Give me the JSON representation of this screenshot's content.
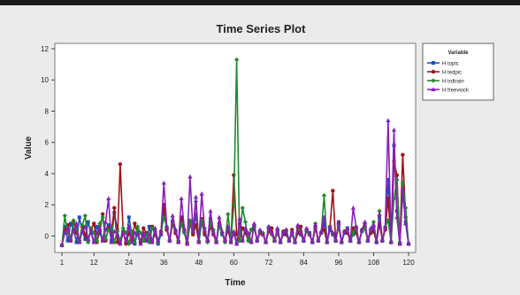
{
  "colors": {
    "panel_bg": "#ebebeb",
    "plot_bg": "#ffffff",
    "top_bar": "#1a1a1a"
  },
  "chart_data": {
    "type": "line",
    "title": "Time Series Plot",
    "xlabel": "Time",
    "ylabel": "Value",
    "xlim": [
      1,
      120
    ],
    "ylim": [
      -0.6,
      12
    ],
    "xticks": [
      1,
      12,
      24,
      36,
      48,
      60,
      72,
      84,
      96,
      108,
      120
    ],
    "yticks": [
      0,
      2,
      4,
      6,
      8,
      10,
      12
    ],
    "grid": false,
    "legend_placement": "right",
    "legend_title": "Variable",
    "series": [
      {
        "name": "H topic",
        "color": "#1f4fb8",
        "marker": "square",
        "values": [
          -0.6,
          0.6,
          -0.3,
          0.8,
          0.4,
          -0.4,
          1.2,
          0.3,
          -0.2,
          0.9,
          0.2,
          -0.4,
          0.6,
          0.2,
          -0.3,
          0.4,
          0.7,
          -0.3,
          1.5,
          0.4,
          -0.5,
          0.2,
          -0.4,
          1.2,
          0.1,
          -0.5,
          0.3,
          -0.4,
          0.0,
          -0.3,
          0.6,
          -0.4,
          0.2,
          -0.5,
          0.1,
          1.6,
          0.4,
          -0.3,
          0.8,
          0.2,
          -0.4,
          1.0,
          0.3,
          -0.5,
          0.8,
          0.2,
          1.4,
          -0.4,
          0.9,
          0.1,
          -0.3,
          1.1,
          0.2,
          -0.4,
          0.7,
          0.1,
          -0.3,
          0.5,
          -0.4,
          0.2,
          -0.5,
          0.8,
          -0.3,
          0.4,
          0.1,
          -0.4,
          0.6,
          -0.3,
          0.3,
          0.1,
          -0.4,
          0.5,
          0.2,
          -0.3,
          0.4,
          -0.4,
          0.1,
          0.3,
          -0.3,
          0.2,
          -0.4,
          0.6,
          0.1,
          -0.3,
          0.4,
          0.2,
          -0.4,
          0.6,
          -0.3,
          0.2,
          0.8,
          -0.4,
          0.4,
          0.1,
          -0.3,
          0.9,
          -0.4,
          0.2,
          0.5,
          -0.3,
          0.1,
          0.4,
          -0.4,
          0.3,
          0.8,
          -0.3,
          0.2,
          0.6,
          -0.4,
          1.2,
          -0.3,
          0.5,
          3.6,
          -0.4,
          5.8,
          1.6,
          -0.5,
          2.8,
          0.9,
          -0.5
        ]
      },
      {
        "name": "H tedpic",
        "color": "#a01414",
        "marker": "circle",
        "values": [
          -0.6,
          0.4,
          0.7,
          -0.3,
          0.9,
          0.2,
          -0.4,
          0.6,
          0.1,
          -0.3,
          0.4,
          0.8,
          -0.4,
          0.3,
          1.4,
          -0.3,
          0.5,
          0.2,
          1.8,
          -0.4,
          4.6,
          0.3,
          -0.5,
          0.2,
          -0.3,
          0.8,
          0.1,
          -0.4,
          0.5,
          0.2,
          -0.3,
          0.6,
          0.1,
          -0.4,
          0.3,
          2.0,
          0.4,
          -0.3,
          0.9,
          0.2,
          -0.4,
          1.2,
          0.3,
          -0.5,
          0.9,
          0.1,
          0.7,
          -0.4,
          1.1,
          0.2,
          -0.3,
          0.6,
          0.1,
          -0.4,
          0.8,
          0.2,
          -0.3,
          0.4,
          -0.4,
          3.9,
          0.1,
          -0.3,
          0.5,
          0.2,
          -0.3,
          0.4,
          0.7,
          -0.3,
          0.2,
          0.1,
          -0.4,
          0.3,
          0.5,
          -0.3,
          0.2,
          -0.4,
          0.3,
          0.1,
          -0.3,
          0.4,
          -0.4,
          0.2,
          0.6,
          -0.3,
          0.3,
          0.1,
          -0.4,
          0.5,
          -0.3,
          0.2,
          0.4,
          -0.4,
          0.6,
          2.9,
          -0.3,
          0.8,
          -0.4,
          0.3,
          0.2,
          -0.3,
          0.5,
          0.2,
          -0.4,
          0.4,
          0.6,
          -0.3,
          0.2,
          0.3,
          -0.4,
          0.8,
          -0.3,
          0.4,
          2.4,
          -0.4,
          4.8,
          3.9,
          -0.5,
          5.2,
          1.2,
          -0.5
        ]
      },
      {
        "name": "H trdtrain",
        "color": "#1f8a2e",
        "marker": "diamond",
        "values": [
          -0.6,
          1.3,
          0.2,
          -0.2,
          1.0,
          0.5,
          -0.3,
          0.7,
          1.3,
          -0.4,
          0.5,
          0.2,
          -0.3,
          0.8,
          1.2,
          -0.2,
          0.4,
          0.6,
          -0.4,
          0.3,
          -0.3,
          0.5,
          0.2,
          -0.5,
          0.3,
          -0.4,
          0.6,
          0.2,
          -0.3,
          0.1,
          -0.4,
          0.5,
          0.3,
          -0.4,
          0.2,
          1.2,
          0.6,
          -0.3,
          1.0,
          0.4,
          -0.3,
          0.8,
          0.2,
          -0.4,
          1.0,
          0.3,
          2.2,
          -0.3,
          1.0,
          0.5,
          -0.4,
          0.9,
          0.4,
          -0.3,
          0.6,
          0.2,
          -0.4,
          1.4,
          -0.3,
          2.0,
          11.3,
          -0.3,
          1.8,
          0.9,
          -0.3,
          0.4,
          0.6,
          -0.3,
          0.3,
          0.2,
          -0.4,
          0.6,
          0.1,
          -0.3,
          0.3,
          -0.4,
          0.2,
          0.4,
          -0.3,
          0.1,
          -0.4,
          0.5,
          0.2,
          -0.3,
          0.3,
          0.1,
          -0.4,
          0.8,
          -0.3,
          0.2,
          2.6,
          -0.4,
          0.6,
          0.2,
          -0.3,
          0.6,
          -0.4,
          0.3,
          0.4,
          -0.3,
          0.2,
          0.6,
          -0.4,
          0.3,
          0.5,
          -0.3,
          0.4,
          0.9,
          -0.4,
          1.6,
          -0.3,
          0.6,
          1.0,
          -0.4,
          2.4,
          3.6,
          -0.4,
          3.4,
          1.8,
          -0.5
        ]
      },
      {
        "name": "H freeviock",
        "color": "#8a1fb8",
        "marker": "triangle",
        "values": [
          -0.6,
          0.2,
          0.5,
          -0.3,
          0.4,
          0.8,
          -0.4,
          0.3,
          0.6,
          -0.2,
          0.4,
          -0.4,
          0.2,
          0.5,
          -0.3,
          0.9,
          2.4,
          -0.4,
          0.3,
          0.1,
          -0.5,
          0.2,
          -0.3,
          0.6,
          -0.4,
          0.2,
          0.1,
          -0.5,
          0.2,
          -0.3,
          0.1,
          -0.4,
          0.5,
          -0.3,
          0.2,
          3.4,
          0.6,
          -0.3,
          1.3,
          0.4,
          -0.4,
          2.4,
          0.5,
          -0.5,
          3.8,
          0.3,
          2.5,
          -0.4,
          2.7,
          0.4,
          -0.3,
          1.6,
          0.2,
          -0.4,
          1.2,
          0.3,
          -0.3,
          0.6,
          -0.4,
          0.3,
          -0.5,
          1.1,
          -0.3,
          0.5,
          0.2,
          -0.4,
          0.8,
          -0.3,
          0.4,
          0.1,
          -0.4,
          0.6,
          0.2,
          -0.3,
          0.5,
          -0.4,
          0.2,
          0.4,
          -0.3,
          0.3,
          -0.4,
          0.7,
          0.2,
          -0.3,
          0.5,
          0.1,
          -0.4,
          0.7,
          -0.3,
          0.3,
          1.2,
          -0.4,
          0.6,
          0.2,
          -0.3,
          0.8,
          -0.4,
          0.3,
          0.5,
          -0.3,
          1.8,
          0.6,
          -0.4,
          0.4,
          0.9,
          -0.3,
          0.5,
          0.7,
          -0.4,
          1.4,
          -0.3,
          0.6,
          7.4,
          -0.4,
          6.8,
          1.2,
          -0.5,
          3.0,
          0.8,
          -0.5
        ]
      }
    ]
  }
}
